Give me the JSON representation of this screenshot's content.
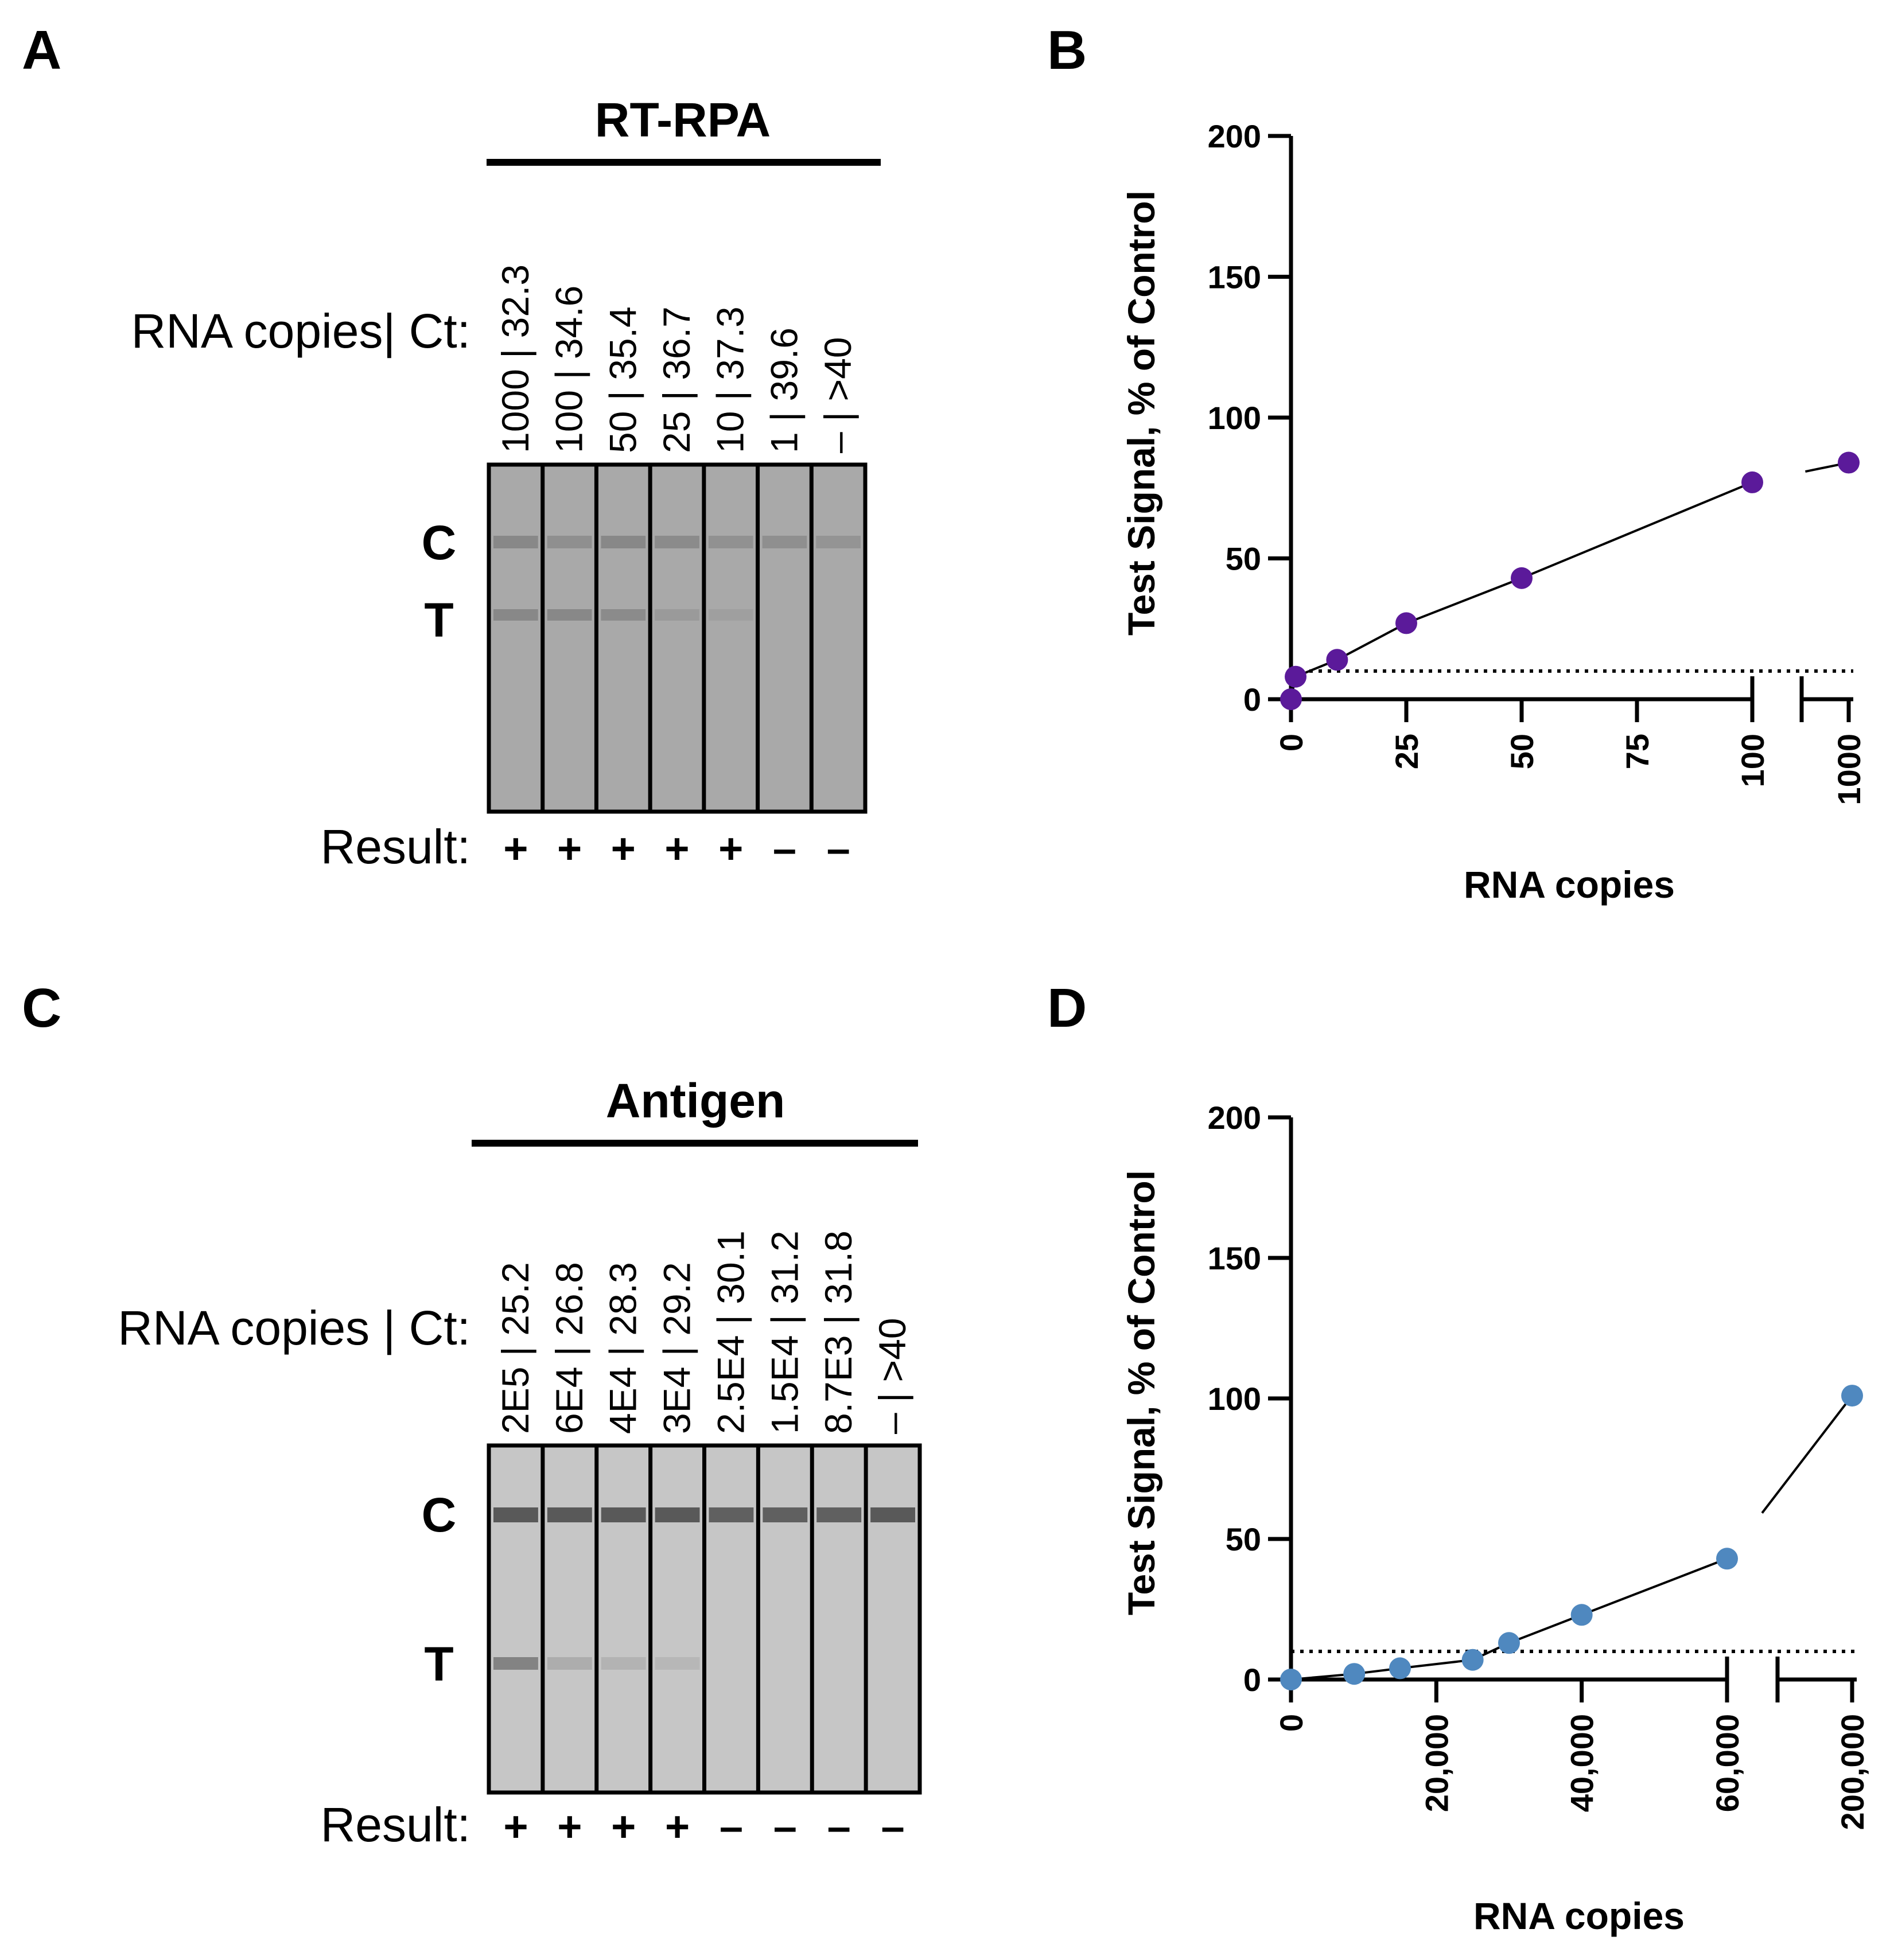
{
  "panels": {
    "A": {
      "letter": "A",
      "header": "RT-RPA",
      "row_label": "RNA copies| Ct:",
      "lanes": [
        "1000 | 32.3",
        "100 | 34.6",
        "50 | 35.4",
        "25 | 36.7",
        "10 | 37.3",
        "1 | 39.6",
        "– | >40"
      ],
      "band_labels": [
        "C",
        "T"
      ],
      "result_label": "Result:",
      "results": [
        "+",
        "+",
        "+",
        "+",
        "+",
        "–",
        "–"
      ],
      "strip_colors": {
        "background": "#a9a9a9",
        "band": "#6e6e6e",
        "separator": "#000000"
      }
    },
    "C": {
      "letter": "C",
      "header": "Antigen",
      "row_label": "RNA copies | Ct:",
      "lanes": [
        "2E5 | 25.2",
        "6E4 | 26.8",
        "4E4 | 28.3",
        "3E4 | 29.2",
        "2.5E4 | 30.1",
        "1.5E4 | 31.2",
        "8.7E3 | 31.8",
        "– | >40"
      ],
      "band_labels": [
        "C",
        "T"
      ],
      "result_label": "Result:",
      "results": [
        "+",
        "+",
        "+",
        "+",
        "–",
        "–",
        "–",
        "–"
      ],
      "strip_colors": {
        "background": "#c6c6c6",
        "band": "#4d4d4d",
        "separator": "#000000"
      }
    }
  },
  "chart_data": [
    {
      "panel": "B",
      "letter": "B",
      "type": "scatter",
      "xlabel": "RNA copies",
      "ylabel": "Test Signal, % of Control",
      "ylim": [
        0,
        200
      ],
      "yticks": [
        0,
        50,
        100,
        150,
        200
      ],
      "x_axis_segments": [
        {
          "range": [
            0,
            100
          ],
          "ticks": [
            "0",
            "25",
            "50",
            "75",
            "100"
          ],
          "tick_values": [
            0,
            25,
            50,
            75,
            100
          ]
        },
        {
          "range": [
            1000,
            1000
          ],
          "ticks": [
            "1000"
          ],
          "tick_values": [
            1000
          ]
        }
      ],
      "threshold": 10,
      "marker_color": "#5b1a9a",
      "series": [
        {
          "x": [
            0,
            1,
            10,
            25,
            50,
            100,
            1000
          ],
          "y": [
            0,
            8,
            14,
            27,
            43,
            77,
            84
          ]
        }
      ]
    },
    {
      "panel": "D",
      "letter": "D",
      "type": "scatter",
      "xlabel": "RNA copies",
      "ylabel": "Test Signal, % of Control",
      "ylim": [
        0,
        200
      ],
      "yticks": [
        0,
        50,
        100,
        150,
        200
      ],
      "x_axis_segments": [
        {
          "range": [
            0,
            60000
          ],
          "ticks": [
            "0",
            "20,000",
            "40,000",
            "60,000"
          ],
          "tick_values": [
            0,
            20000,
            40000,
            60000
          ]
        },
        {
          "range": [
            200000,
            200000
          ],
          "ticks": [
            "200,000"
          ],
          "tick_values": [
            200000
          ]
        }
      ],
      "threshold": 10,
      "marker_color": "#4f88bf",
      "series": [
        {
          "x": [
            0,
            8700,
            15000,
            25000,
            30000,
            40000,
            60000,
            200000
          ],
          "y": [
            0,
            2,
            4,
            7,
            13,
            23,
            43,
            101
          ]
        }
      ]
    }
  ]
}
